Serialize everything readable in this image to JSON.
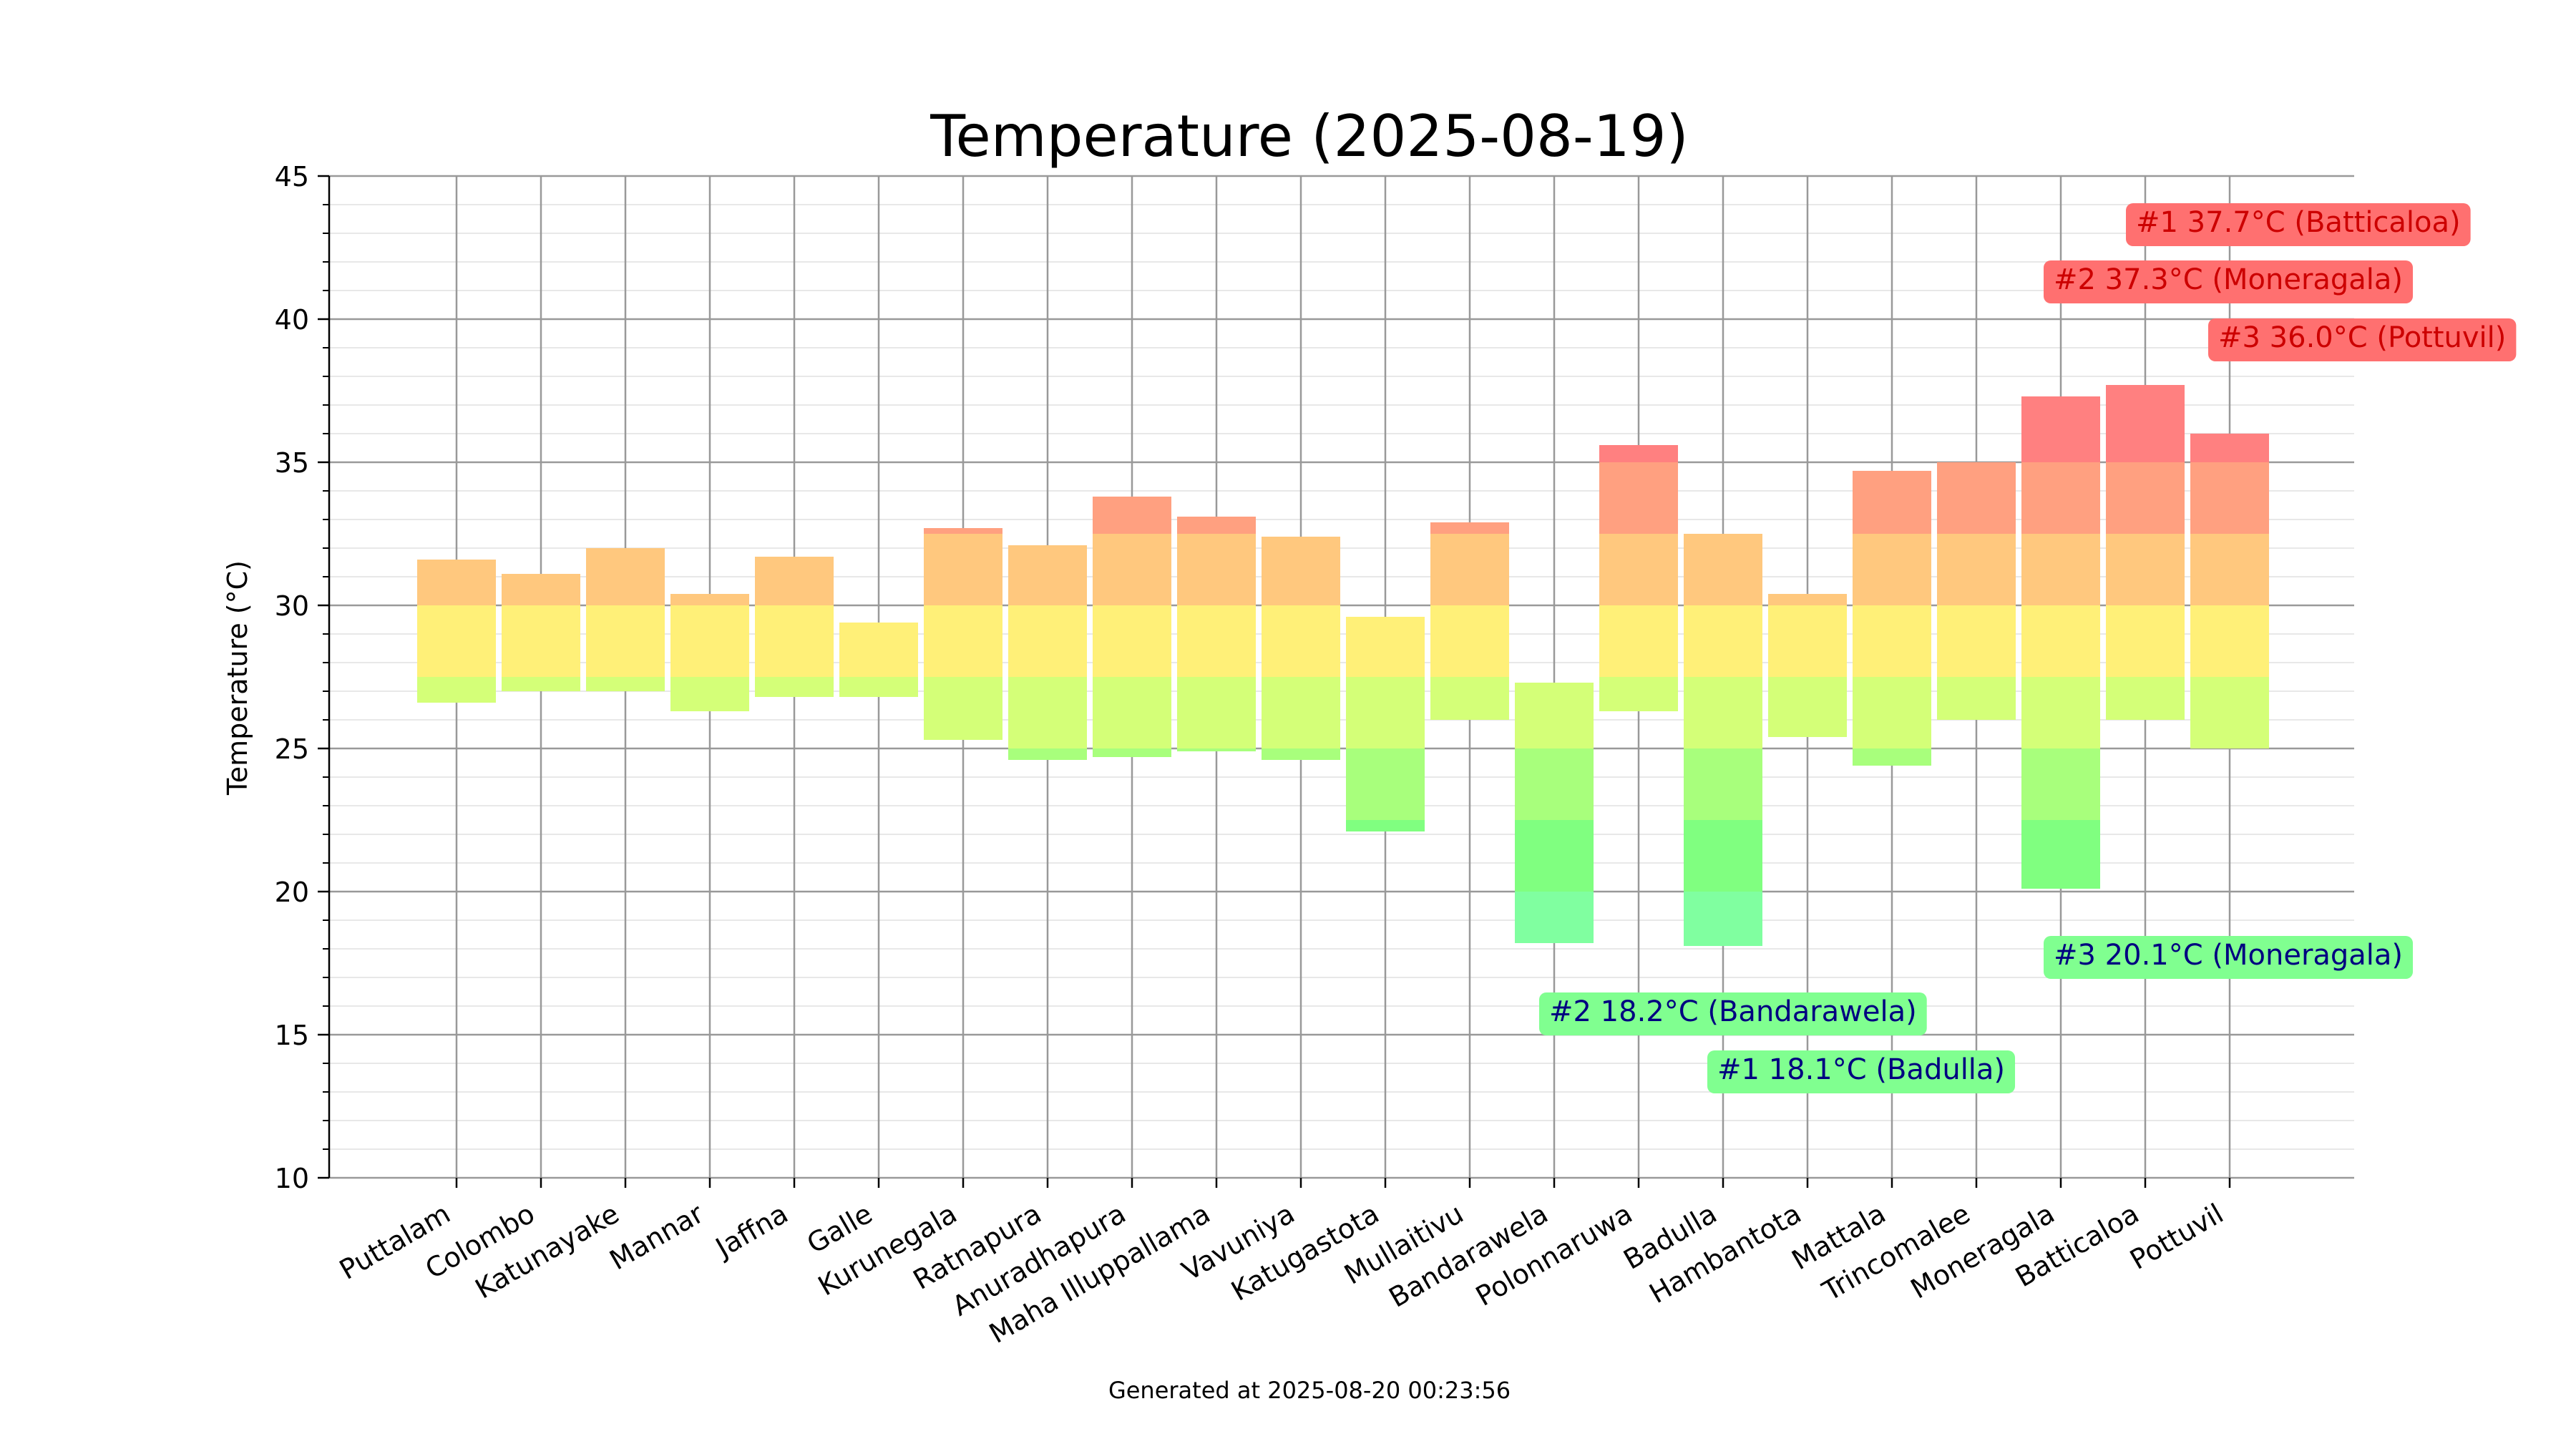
{
  "chart_data": {
    "type": "bar",
    "title": "Temperature (2025-08-19)",
    "ylabel": "Temperature (°C)",
    "xlabel": "",
    "ylim": [
      10,
      45
    ],
    "yticks": [
      10,
      15,
      20,
      25,
      30,
      35,
      40,
      45
    ],
    "grid": true,
    "footer": "Generated at 2025-08-20 00:23:56",
    "categories": [
      "Puttalam",
      "Colombo",
      "Katunayake",
      "Mannar",
      "Jaffna",
      "Galle",
      "Kurunegala",
      "Ratnapura",
      "Anuradhapura",
      "Maha Illuppallama",
      "Vavuniya",
      "Katugastota",
      "Mullaitivu",
      "Bandarawela",
      "Polonnaruwa",
      "Badulla",
      "Hambantota",
      "Mattala",
      "Trincomalee",
      "Moneragala",
      "Batticaloa",
      "Pottuvil"
    ],
    "min": [
      26.6,
      27.0,
      27.0,
      26.3,
      26.8,
      26.8,
      25.3,
      24.6,
      24.7,
      24.9,
      24.6,
      22.1,
      26.0,
      18.2,
      26.3,
      18.1,
      25.4,
      24.4,
      26.0,
      20.1,
      26.0,
      25.0
    ],
    "max": [
      31.6,
      31.1,
      32.0,
      30.4,
      31.7,
      29.4,
      32.7,
      32.1,
      33.8,
      33.1,
      32.4,
      29.6,
      32.9,
      27.3,
      35.6,
      32.5,
      30.4,
      34.7,
      35.0,
      37.3,
      37.7,
      36.0
    ],
    "segment_colors": [
      {
        "from": 10,
        "to": 20,
        "color": "#80ffa0"
      },
      {
        "from": 20,
        "to": 22.5,
        "color": "#80ff80"
      },
      {
        "from": 22.5,
        "to": 25,
        "color": "#a8ff7c"
      },
      {
        "from": 25,
        "to": 27.5,
        "color": "#d4ff78"
      },
      {
        "from": 27.5,
        "to": 30,
        "color": "#fff078"
      },
      {
        "from": 30,
        "to": 32.5,
        "color": "#ffc87e"
      },
      {
        "from": 32.5,
        "to": 35,
        "color": "#ffa080"
      },
      {
        "from": 35,
        "to": 45,
        "color": "#ff8080"
      }
    ],
    "annotations": [
      {
        "text": "#1 37.7°C (Batticaloa)",
        "group": "max"
      },
      {
        "text": "#2 37.3°C (Moneragala)",
        "group": "max"
      },
      {
        "text": "#3 36.0°C (Pottuvil)",
        "group": "max"
      },
      {
        "text": "#1 18.1°C (Badulla)",
        "group": "min"
      },
      {
        "text": "#2 18.2°C (Bandarawela)",
        "group": "min"
      },
      {
        "text": "#3 20.1°C (Moneragala)",
        "group": "min"
      }
    ],
    "colors": {
      "max_box": "#ff7070",
      "max_text": "#cc0000",
      "min_box": "#80ff90",
      "min_text": "#000080",
      "grid_major": "#999999",
      "grid_minor": "#e0e0e0"
    }
  }
}
